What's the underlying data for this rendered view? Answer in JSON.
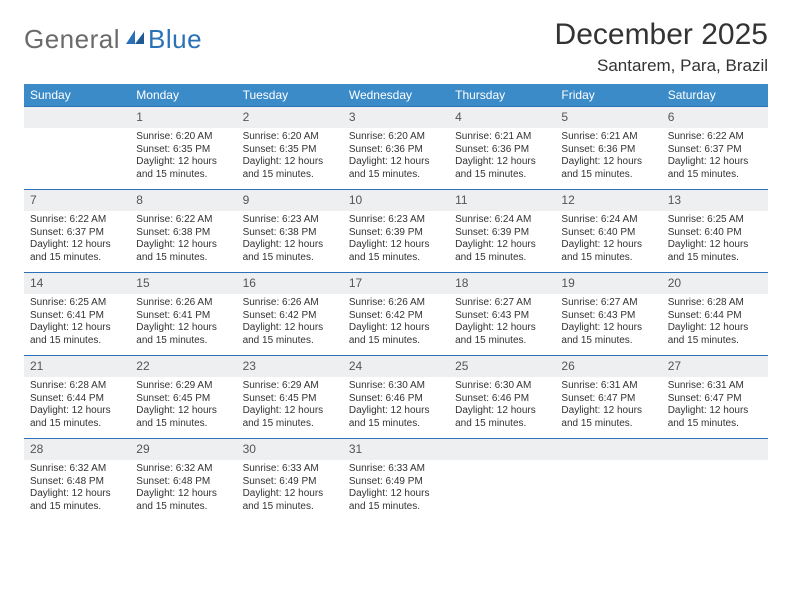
{
  "logo": {
    "general": "General",
    "blue": "Blue"
  },
  "title": "December 2025",
  "location": "Santarem, Para, Brazil",
  "colors": {
    "header_bg": "#3b8bc9",
    "header_text": "#ffffff",
    "daynum_bg": "#edeff1",
    "week_divider": "#2a71b8",
    "logo_gray": "#6a6a6a",
    "logo_blue": "#2a71b8",
    "text": "#333333",
    "background": "#ffffff"
  },
  "typography": {
    "title_fontsize": 30,
    "location_fontsize": 17,
    "dayheader_fontsize": 12,
    "daynum_fontsize": 12,
    "detail_fontsize": 10
  },
  "day_headers": [
    "Sunday",
    "Monday",
    "Tuesday",
    "Wednesday",
    "Thursday",
    "Friday",
    "Saturday"
  ],
  "weeks": [
    [
      {
        "n": "",
        "sr": "",
        "ss": "",
        "dl": ""
      },
      {
        "n": "1",
        "sr": "Sunrise: 6:20 AM",
        "ss": "Sunset: 6:35 PM",
        "dl": "Daylight: 12 hours and 15 minutes."
      },
      {
        "n": "2",
        "sr": "Sunrise: 6:20 AM",
        "ss": "Sunset: 6:35 PM",
        "dl": "Daylight: 12 hours and 15 minutes."
      },
      {
        "n": "3",
        "sr": "Sunrise: 6:20 AM",
        "ss": "Sunset: 6:36 PM",
        "dl": "Daylight: 12 hours and 15 minutes."
      },
      {
        "n": "4",
        "sr": "Sunrise: 6:21 AM",
        "ss": "Sunset: 6:36 PM",
        "dl": "Daylight: 12 hours and 15 minutes."
      },
      {
        "n": "5",
        "sr": "Sunrise: 6:21 AM",
        "ss": "Sunset: 6:36 PM",
        "dl": "Daylight: 12 hours and 15 minutes."
      },
      {
        "n": "6",
        "sr": "Sunrise: 6:22 AM",
        "ss": "Sunset: 6:37 PM",
        "dl": "Daylight: 12 hours and 15 minutes."
      }
    ],
    [
      {
        "n": "7",
        "sr": "Sunrise: 6:22 AM",
        "ss": "Sunset: 6:37 PM",
        "dl": "Daylight: 12 hours and 15 minutes."
      },
      {
        "n": "8",
        "sr": "Sunrise: 6:22 AM",
        "ss": "Sunset: 6:38 PM",
        "dl": "Daylight: 12 hours and 15 minutes."
      },
      {
        "n": "9",
        "sr": "Sunrise: 6:23 AM",
        "ss": "Sunset: 6:38 PM",
        "dl": "Daylight: 12 hours and 15 minutes."
      },
      {
        "n": "10",
        "sr": "Sunrise: 6:23 AM",
        "ss": "Sunset: 6:39 PM",
        "dl": "Daylight: 12 hours and 15 minutes."
      },
      {
        "n": "11",
        "sr": "Sunrise: 6:24 AM",
        "ss": "Sunset: 6:39 PM",
        "dl": "Daylight: 12 hours and 15 minutes."
      },
      {
        "n": "12",
        "sr": "Sunrise: 6:24 AM",
        "ss": "Sunset: 6:40 PM",
        "dl": "Daylight: 12 hours and 15 minutes."
      },
      {
        "n": "13",
        "sr": "Sunrise: 6:25 AM",
        "ss": "Sunset: 6:40 PM",
        "dl": "Daylight: 12 hours and 15 minutes."
      }
    ],
    [
      {
        "n": "14",
        "sr": "Sunrise: 6:25 AM",
        "ss": "Sunset: 6:41 PM",
        "dl": "Daylight: 12 hours and 15 minutes."
      },
      {
        "n": "15",
        "sr": "Sunrise: 6:26 AM",
        "ss": "Sunset: 6:41 PM",
        "dl": "Daylight: 12 hours and 15 minutes."
      },
      {
        "n": "16",
        "sr": "Sunrise: 6:26 AM",
        "ss": "Sunset: 6:42 PM",
        "dl": "Daylight: 12 hours and 15 minutes."
      },
      {
        "n": "17",
        "sr": "Sunrise: 6:26 AM",
        "ss": "Sunset: 6:42 PM",
        "dl": "Daylight: 12 hours and 15 minutes."
      },
      {
        "n": "18",
        "sr": "Sunrise: 6:27 AM",
        "ss": "Sunset: 6:43 PM",
        "dl": "Daylight: 12 hours and 15 minutes."
      },
      {
        "n": "19",
        "sr": "Sunrise: 6:27 AM",
        "ss": "Sunset: 6:43 PM",
        "dl": "Daylight: 12 hours and 15 minutes."
      },
      {
        "n": "20",
        "sr": "Sunrise: 6:28 AM",
        "ss": "Sunset: 6:44 PM",
        "dl": "Daylight: 12 hours and 15 minutes."
      }
    ],
    [
      {
        "n": "21",
        "sr": "Sunrise: 6:28 AM",
        "ss": "Sunset: 6:44 PM",
        "dl": "Daylight: 12 hours and 15 minutes."
      },
      {
        "n": "22",
        "sr": "Sunrise: 6:29 AM",
        "ss": "Sunset: 6:45 PM",
        "dl": "Daylight: 12 hours and 15 minutes."
      },
      {
        "n": "23",
        "sr": "Sunrise: 6:29 AM",
        "ss": "Sunset: 6:45 PM",
        "dl": "Daylight: 12 hours and 15 minutes."
      },
      {
        "n": "24",
        "sr": "Sunrise: 6:30 AM",
        "ss": "Sunset: 6:46 PM",
        "dl": "Daylight: 12 hours and 15 minutes."
      },
      {
        "n": "25",
        "sr": "Sunrise: 6:30 AM",
        "ss": "Sunset: 6:46 PM",
        "dl": "Daylight: 12 hours and 15 minutes."
      },
      {
        "n": "26",
        "sr": "Sunrise: 6:31 AM",
        "ss": "Sunset: 6:47 PM",
        "dl": "Daylight: 12 hours and 15 minutes."
      },
      {
        "n": "27",
        "sr": "Sunrise: 6:31 AM",
        "ss": "Sunset: 6:47 PM",
        "dl": "Daylight: 12 hours and 15 minutes."
      }
    ],
    [
      {
        "n": "28",
        "sr": "Sunrise: 6:32 AM",
        "ss": "Sunset: 6:48 PM",
        "dl": "Daylight: 12 hours and 15 minutes."
      },
      {
        "n": "29",
        "sr": "Sunrise: 6:32 AM",
        "ss": "Sunset: 6:48 PM",
        "dl": "Daylight: 12 hours and 15 minutes."
      },
      {
        "n": "30",
        "sr": "Sunrise: 6:33 AM",
        "ss": "Sunset: 6:49 PM",
        "dl": "Daylight: 12 hours and 15 minutes."
      },
      {
        "n": "31",
        "sr": "Sunrise: 6:33 AM",
        "ss": "Sunset: 6:49 PM",
        "dl": "Daylight: 12 hours and 15 minutes."
      },
      {
        "n": "",
        "sr": "",
        "ss": "",
        "dl": ""
      },
      {
        "n": "",
        "sr": "",
        "ss": "",
        "dl": ""
      },
      {
        "n": "",
        "sr": "",
        "ss": "",
        "dl": ""
      }
    ]
  ]
}
